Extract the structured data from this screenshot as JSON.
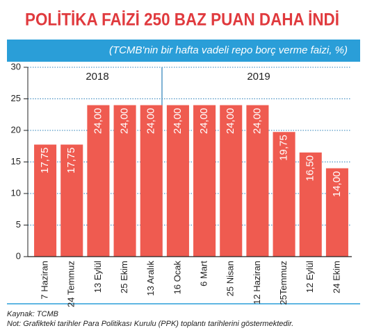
{
  "chart_data": {
    "type": "bar",
    "title": "POLİTİKA FAİZİ 250 BAZ PUAN DAHA İNDİ",
    "subtitle": "(TCMB'nin bir hafta vadeli repo borç verme faizi, %)",
    "categories": [
      "7 Haziran",
      "24 Temmuz",
      "13 Eylül",
      "25 Ekim",
      "13 Aralık",
      "16 Ocak",
      "6 Mart",
      "25 Nisan",
      "12 Haziran",
      "25Temmuz",
      "12 Eylül",
      "24 Ekim"
    ],
    "values": [
      17.75,
      17.75,
      24,
      24,
      24,
      24,
      24,
      24,
      24,
      19.75,
      16.5,
      14
    ],
    "value_labels": [
      "17,75",
      "17,75",
      "24,00",
      "24,00",
      "24,00",
      "24,00",
      "24,00",
      "24,00",
      "24,00",
      "19,75",
      "16,50",
      "14,00"
    ],
    "color": "#ef5b50",
    "annotations": [
      "2018",
      "2019"
    ],
    "ylim": [
      0,
      30
    ],
    "yticks": [
      0,
      5,
      10,
      15,
      20,
      25,
      30
    ],
    "grid": true,
    "source": "Kaynak: TCMB",
    "note": "Not: Grafikteki tarihler Para Politikası Kurulu (PPK) toplantı tarihlerini göstermektedir."
  }
}
